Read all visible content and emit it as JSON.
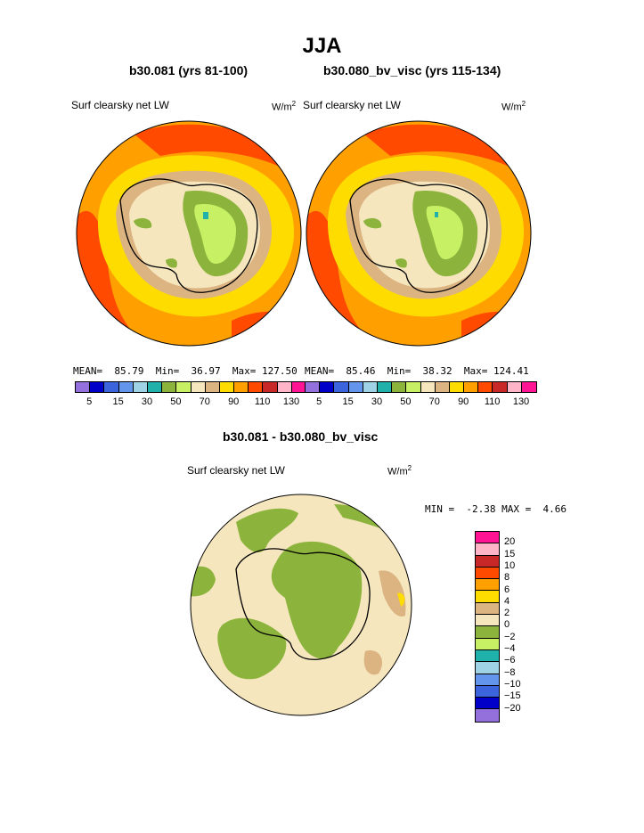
{
  "title": "JJA",
  "panels": [
    {
      "title": "b30.081 (yrs 81-100)",
      "variable": "Surf clearsky net LW",
      "units": "W/m",
      "units_exp": "2",
      "mean_label": "MEAN=",
      "mean": "85.79",
      "min_label": "Min=",
      "min": "36.97",
      "max_label": "Max=",
      "max": "127.50"
    },
    {
      "title": "b30.080_bv_visc (yrs 115-134)",
      "variable": "Surf clearsky net LW",
      "units": "W/m",
      "units_exp": "2",
      "mean_label": "MEAN=",
      "mean": "85.46",
      "min_label": "Min=",
      "min": "38.32",
      "max_label": "Max=",
      "max": "124.41"
    }
  ],
  "colorbar_top": {
    "colors": [
      "#9370db",
      "#0000c8",
      "#3c64dc",
      "#6495ed",
      "#a0d2e6",
      "#20b2aa",
      "#8cb43c",
      "#c8f064",
      "#f5e6be",
      "#dcb482",
      "#ffdc00",
      "#ffa000",
      "#ff4a00",
      "#c82828",
      "#ffb4c8",
      "#ff1493"
    ],
    "tick_labels": [
      "5",
      "15",
      "30",
      "50",
      "70",
      "90",
      "110",
      "130"
    ]
  },
  "diff_panel": {
    "title": "b30.081 - b30.080_bv_visc",
    "variable": "Surf clearsky net LW",
    "units": "W/m",
    "units_exp": "2",
    "min_label": "MIN =",
    "min": "-2.38",
    "max_label": "MAX =",
    "max": "4.66"
  },
  "colorbar_diff": {
    "colors": [
      "#ff1493",
      "#ffb4c8",
      "#c82828",
      "#ff4a00",
      "#ffa000",
      "#ffdc00",
      "#dcb482",
      "#f5e6be",
      "#8cb43c",
      "#c8f064",
      "#20b2aa",
      "#a0d2e6",
      "#6495ed",
      "#3c64dc",
      "#0000c8",
      "#9370db"
    ],
    "tick_labels": [
      "20",
      "15",
      "10",
      "8",
      "6",
      "4",
      "2",
      "0",
      "−2",
      "−4",
      "−6",
      "−8",
      "−10",
      "−15",
      "−20"
    ]
  }
}
